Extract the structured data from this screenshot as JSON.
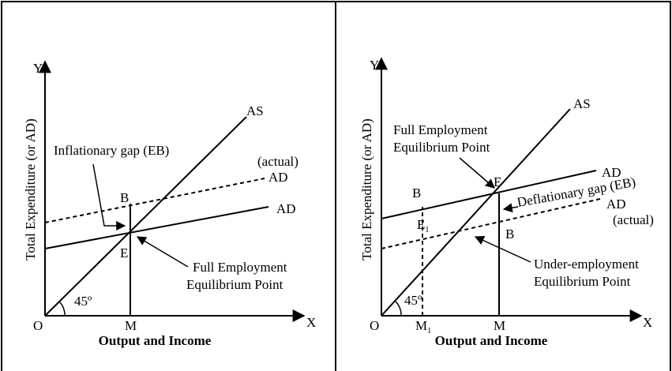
{
  "panels": [
    {
      "y_axis": "Y",
      "x_axis": "X",
      "origin": "O",
      "y_label": "Total Expenditure (or AD)",
      "x_label": "Output and Income",
      "angle": "45º",
      "as": "AS",
      "ad": "AD",
      "ad_actual": "AD",
      "actual": "(actual)",
      "m": "M",
      "b": "B",
      "e": "E",
      "gap": "Inflationary gap (EB)",
      "point": [
        "Full Employment",
        "Equilibrium Point"
      ]
    },
    {
      "y_axis": "Y",
      "x_axis": "X",
      "origin": "O",
      "y_label": "Total Expenditure (or AD)",
      "x_label": "Output and Income",
      "angle": "45º",
      "as": "AS",
      "ad": "AD",
      "ad_actual": "AD",
      "actual": "(actual)",
      "m": "M",
      "m1": "M",
      "m1_sub": "1",
      "b_upper": "B",
      "b_lower": "B",
      "e": "E",
      "e1": "E",
      "e1_sub": "1",
      "gap": "Deflationary gap (EB)",
      "point": [
        "Full Employment",
        "Equilibrium Point"
      ],
      "under_point": [
        "Under-employment",
        "Equilibrium Point"
      ]
    }
  ]
}
